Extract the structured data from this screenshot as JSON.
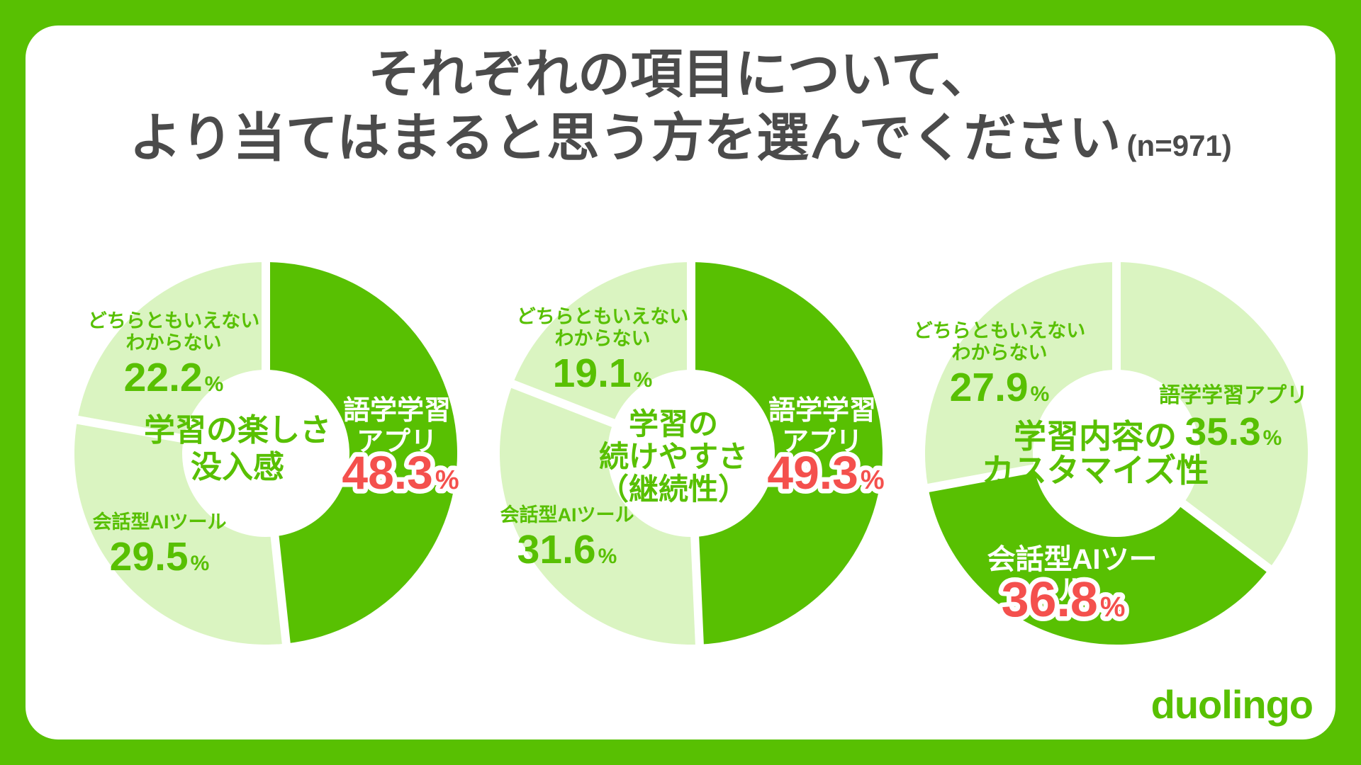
{
  "title": {
    "line1": "それぞれの項目について、",
    "line2": "より当てはまると思う方を選んでください",
    "sample_size": "(n=971)"
  },
  "colors": {
    "brand_green": "#58c002",
    "pale_green": "#daf4c1",
    "accent_red": "#f4504d",
    "title_gray": "#4b4b4b",
    "card_white": "#ffffff"
  },
  "logo": {
    "text": "duolingo"
  },
  "chart_data": [
    {
      "type": "donut",
      "center_label_lines": [
        "学習の楽しさ",
        "没入感"
      ],
      "legend_position": "around",
      "segments": [
        {
          "name": "語学学習アプリ",
          "label_line1": "語学学習",
          "label_line2": "アプリ",
          "value": 48.3,
          "value_text": "48.3",
          "unit": "%",
          "highlight": true
        },
        {
          "name": "会話型AIツール",
          "label_line1": "会話型AIツール",
          "label_line2": "",
          "value": 29.5,
          "value_text": "29.5",
          "unit": "%",
          "highlight": false
        },
        {
          "name": "どちらともいえない・わからない",
          "label_line1": "どちらともいえない",
          "label_line2": "わからない",
          "value": 22.2,
          "value_text": "22.2",
          "unit": "%",
          "highlight": false
        }
      ]
    },
    {
      "type": "donut",
      "center_label_lines": [
        "学習の",
        "続けやすさ",
        "（継続性）"
      ],
      "legend_position": "around",
      "segments": [
        {
          "name": "語学学習アプリ",
          "label_line1": "語学学習",
          "label_line2": "アプリ",
          "value": 49.3,
          "value_text": "49.3",
          "unit": "%",
          "highlight": true
        },
        {
          "name": "会話型AIツール",
          "label_line1": "会話型AIツール",
          "label_line2": "",
          "value": 31.6,
          "value_text": "31.6",
          "unit": "%",
          "highlight": false
        },
        {
          "name": "どちらともいえない・わからない",
          "label_line1": "どちらともいえない",
          "label_line2": "わからない",
          "value": 19.1,
          "value_text": "19.1",
          "unit": "%",
          "highlight": false
        }
      ]
    },
    {
      "type": "donut",
      "center_label_lines": [
        "学習内容の",
        "カスタマイズ性"
      ],
      "legend_position": "around",
      "segments": [
        {
          "name": "語学学習アプリ",
          "label_line1": "語学学習アプリ",
          "label_line2": "",
          "value": 35.3,
          "value_text": "35.3",
          "unit": "%",
          "highlight": false
        },
        {
          "name": "会話型AIツール",
          "label_line1": "会話型AIツール",
          "label_line2": "",
          "value": 36.8,
          "value_text": "36.8",
          "unit": "%",
          "highlight": true
        },
        {
          "name": "どちらともいえない・わからない",
          "label_line1": "どちらともいえない",
          "label_line2": "わからない",
          "value": 27.9,
          "value_text": "27.9",
          "unit": "%",
          "highlight": false
        }
      ]
    }
  ]
}
